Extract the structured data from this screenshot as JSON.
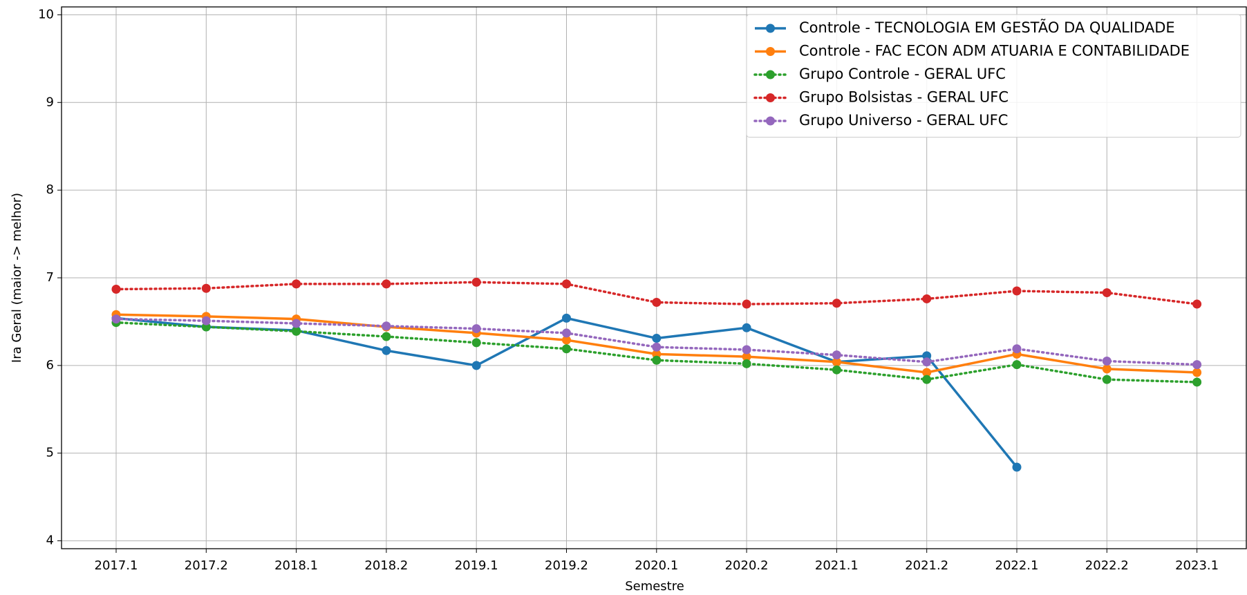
{
  "chart_data": {
    "type": "line",
    "xlabel": "Semestre",
    "ylabel": "Ira Geral (maior -> melhor)",
    "categories": [
      "2017.1",
      "2017.2",
      "2018.1",
      "2018.2",
      "2019.1",
      "2019.2",
      "2020.1",
      "2020.2",
      "2021.1",
      "2021.2",
      "2022.1",
      "2022.2",
      "2023.1"
    ],
    "series": [
      {
        "name": "Controle - TECNOLOGIA EM GESTÃO DA QUALIDADE",
        "color": "#1f77b4",
        "linestyle": "solid",
        "values": [
          6.54,
          6.44,
          6.4,
          6.17,
          6.0,
          6.54,
          6.31,
          6.43,
          6.04,
          6.11,
          4.84,
          null,
          null
        ]
      },
      {
        "name": "Controle - FAC ECON ADM ATUARIA E CONTABILIDADE",
        "color": "#ff7f0e",
        "linestyle": "solid",
        "values": [
          6.58,
          6.56,
          6.53,
          6.44,
          6.37,
          6.29,
          6.13,
          6.1,
          6.04,
          5.92,
          6.13,
          5.96,
          5.92
        ]
      },
      {
        "name": "Grupo Controle - GERAL UFC",
        "color": "#2ca02c",
        "linestyle": "dotted",
        "values": [
          6.49,
          6.44,
          6.39,
          6.33,
          6.26,
          6.19,
          6.06,
          6.02,
          5.95,
          5.84,
          6.01,
          5.84,
          5.81
        ]
      },
      {
        "name": "Grupo Bolsistas - GERAL UFC",
        "color": "#d62728",
        "linestyle": "dotted",
        "values": [
          6.87,
          6.88,
          6.93,
          6.93,
          6.95,
          6.93,
          6.72,
          6.7,
          6.71,
          6.76,
          6.85,
          6.83,
          6.7
        ]
      },
      {
        "name": "Grupo Universo - GERAL UFC",
        "color": "#9467bd",
        "linestyle": "dotted",
        "values": [
          6.53,
          6.51,
          6.48,
          6.45,
          6.42,
          6.37,
          6.21,
          6.18,
          6.12,
          6.04,
          6.19,
          6.05,
          6.01
        ]
      }
    ],
    "ylim": [
      3.91,
      10.09
    ],
    "yticks": [
      4,
      5,
      6,
      7,
      8,
      9,
      10
    ],
    "grid": true,
    "legend": "upper right"
  }
}
